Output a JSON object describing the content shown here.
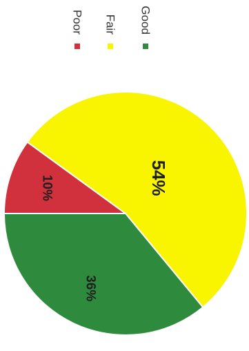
{
  "chart_data": {
    "type": "pie",
    "categories": [
      "Poor",
      "Fair",
      "Good"
    ],
    "values": [
      10,
      54,
      36
    ],
    "labels": [
      "10%",
      "54%",
      "36%"
    ],
    "colors": [
      "#d1313c",
      "#f9f500",
      "#2e8b3e"
    ],
    "legend_position": "top",
    "orientation": "rotated 90° clockwise"
  }
}
